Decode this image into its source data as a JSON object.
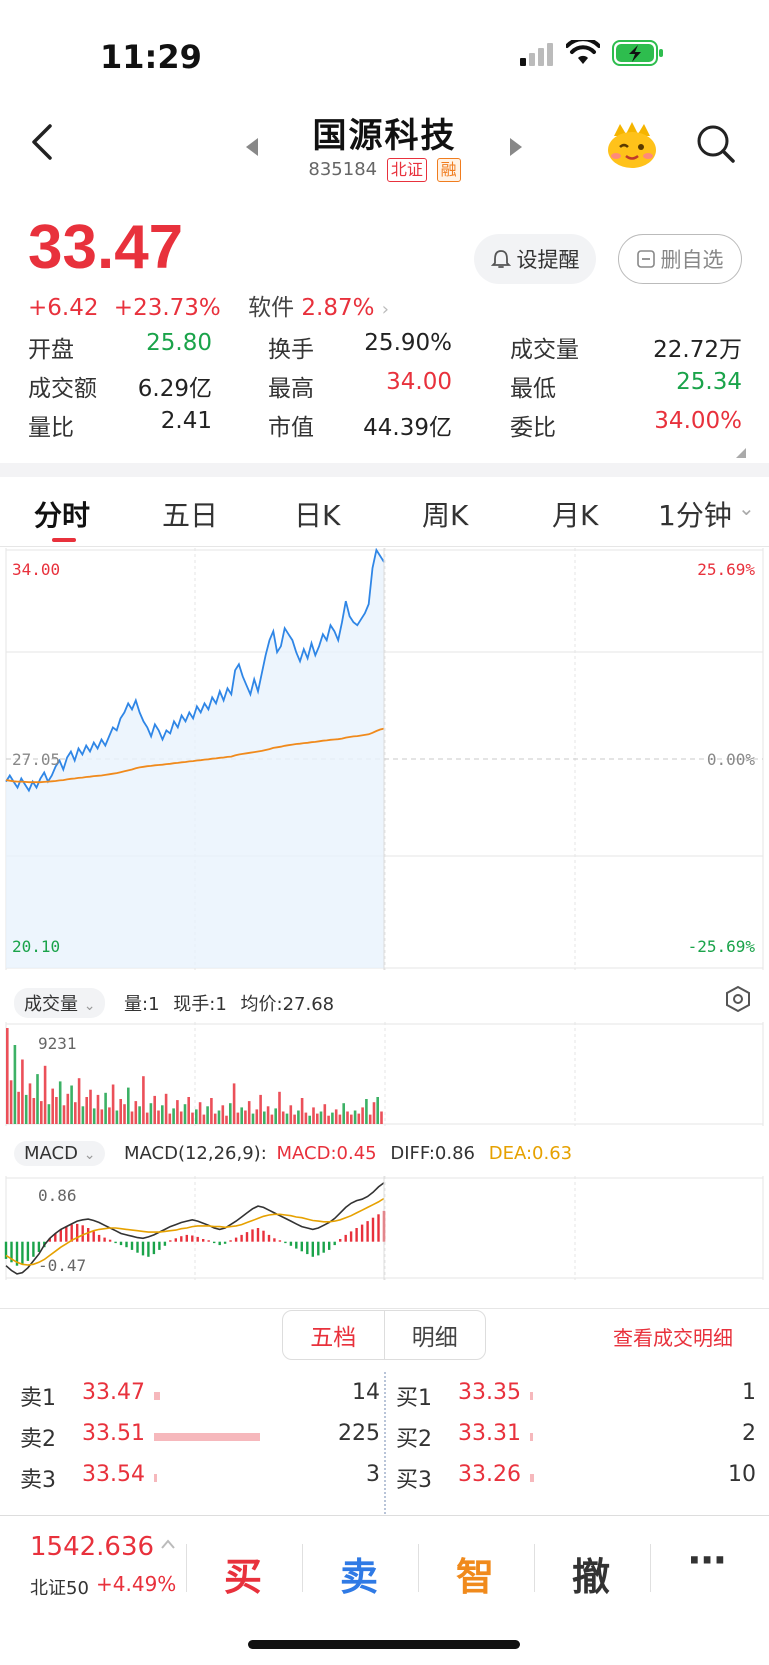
{
  "status_bar": {
    "time": "11:29"
  },
  "header": {
    "title": "国源科技",
    "code": "835184",
    "tag_market": "北证",
    "tag_margin": "融"
  },
  "quote": {
    "price": "33.47",
    "change": "+6.42",
    "change_pct": "+23.73%",
    "sector": "软件",
    "sector_pct": "2.87%",
    "remind_label": "设提醒",
    "watchlist_label": "删自选"
  },
  "stats": [
    [
      {
        "label": "开盘",
        "value": "25.80",
        "color": "green"
      },
      {
        "label": "换手",
        "value": "25.90%",
        "color": "black"
      },
      {
        "label": "成交量",
        "value": "22.72万",
        "color": "black"
      }
    ],
    [
      {
        "label": "成交额",
        "value": "6.29亿",
        "color": "black"
      },
      {
        "label": "最高",
        "value": "34.00",
        "color": "red"
      },
      {
        "label": "最低",
        "value": "25.34",
        "color": "green"
      }
    ],
    [
      {
        "label": "量比",
        "value": "2.41",
        "color": "black"
      },
      {
        "label": "市值",
        "value": "44.39亿",
        "color": "black"
      },
      {
        "label": "委比",
        "value": "34.00%",
        "color": "red"
      }
    ]
  ],
  "tabs": [
    "分时",
    "五日",
    "日K",
    "周K",
    "月K",
    "1分钟"
  ],
  "chart_data": {
    "type": "line",
    "y_axis_left": {
      "max": "34.00",
      "mid": "27.05",
      "min": "20.10"
    },
    "y_axis_right": {
      "max": "25.69%",
      "mid": "0.00%",
      "min": "-25.69%"
    },
    "ylim": [
      20.1,
      34.0
    ],
    "series": [
      {
        "values": [
          26.3,
          26.5,
          26.3,
          26.1,
          26.4,
          26.2,
          26.0,
          26.3,
          26.1,
          26.4,
          26.6,
          26.3,
          26.5,
          26.8,
          27.0,
          26.7,
          27.1,
          27.3,
          27.0,
          27.4,
          27.2,
          27.5,
          27.3,
          27.6,
          27.4,
          27.7,
          27.5,
          27.8,
          28.1,
          28.0,
          28.4,
          28.6,
          28.9,
          28.7,
          29.0,
          28.6,
          28.3,
          28.1,
          27.8,
          28.2,
          28.0,
          27.7,
          28.0,
          27.9,
          28.3,
          28.1,
          28.5,
          28.3,
          28.6,
          28.4,
          28.8,
          28.6,
          28.9,
          28.7,
          29.1,
          28.9,
          29.3,
          29.0,
          29.4,
          29.2,
          30.0,
          30.2,
          29.8,
          29.5,
          29.2,
          29.7,
          29.3,
          29.9,
          30.5,
          31.0,
          31.3,
          30.6,
          30.8,
          31.4,
          31.2,
          31.0,
          30.6,
          30.3,
          30.7,
          30.4,
          30.9,
          30.5,
          30.8,
          31.2,
          31.0,
          31.5,
          31.3,
          31.0,
          31.6,
          32.3,
          31.8,
          31.6,
          31.5,
          31.7,
          31.9,
          32.2,
          33.4,
          34.0,
          33.8,
          33.6
        ]
      },
      {
        "values": [
          26.35,
          26.33,
          26.31,
          26.3,
          26.3,
          26.29,
          26.28,
          26.28,
          26.28,
          26.28,
          26.29,
          26.3,
          26.31,
          26.32,
          26.34,
          26.35,
          26.37,
          26.39,
          26.4,
          26.42,
          26.43,
          26.45,
          26.46,
          26.48,
          26.49,
          26.5,
          26.52,
          26.54,
          26.56,
          26.58,
          26.61,
          26.64,
          26.67,
          26.7,
          26.74,
          26.77,
          26.79,
          26.81,
          26.82,
          26.84,
          26.85,
          26.86,
          26.88,
          26.89,
          26.91,
          26.92,
          26.94,
          26.95,
          26.97,
          26.98,
          27.0,
          27.01,
          27.03,
          27.04,
          27.06,
          27.07,
          27.09,
          27.1,
          27.12,
          27.13,
          27.17,
          27.2,
          27.22,
          27.24,
          27.26,
          27.28,
          27.3,
          27.32,
          27.35,
          27.38,
          27.42,
          27.44,
          27.46,
          27.49,
          27.51,
          27.53,
          27.55,
          27.56,
          27.58,
          27.59,
          27.61,
          27.62,
          27.64,
          27.66,
          27.67,
          27.69,
          27.7,
          27.71,
          27.73,
          27.76,
          27.78,
          27.8,
          27.81,
          27.83,
          27.85,
          27.87,
          27.92,
          27.98,
          28.03,
          28.06
        ]
      }
    ]
  },
  "volume_panel": {
    "selector": "成交量",
    "vol": "量:1",
    "current": "现手:1",
    "avg": "均价:27.68",
    "max_label": "9231",
    "bars": [
      9231,
      4200,
      7600,
      3100,
      6200,
      2800,
      3900,
      2500,
      4800,
      2200,
      5600,
      1900,
      3400,
      2600,
      4100,
      1800,
      2900,
      3700,
      2100,
      4400,
      1700,
      2600,
      3300,
      1500,
      2800,
      1400,
      3000,
      1600,
      3800,
      1300,
      2400,
      1900,
      3500,
      1200,
      2200,
      1700,
      4600,
      1100,
      2000,
      2700,
      1300,
      1800,
      2900,
      1000,
      1500,
      2300,
      1200,
      1900,
      2600,
      1100,
      1400,
      2100,
      900,
      1700,
      2500,
      1000,
      1300,
      1800,
      800,
      2000,
      3900,
      1100,
      1600,
      1300,
      2200,
      1000,
      1400,
      2800,
      1200,
      1700,
      900,
      1500,
      3100,
      1200,
      1000,
      1800,
      900,
      1300,
      2500,
      1100,
      800,
      1600,
      1000,
      1200,
      1900,
      800,
      1100,
      1400,
      900,
      2000,
      1200,
      900,
      1300,
      1000,
      1600,
      2400,
      900,
      2100,
      2600,
      1200
    ]
  },
  "macd_panel": {
    "selector": "MACD",
    "params": "MACD(12,26,9):",
    "macd": "MACD:0.45",
    "diff": "DIFF:0.86",
    "dea": "DEA:0.63",
    "max_label": "0.86",
    "min_label": "-0.47",
    "hist": [
      -0.25,
      -0.3,
      -0.35,
      -0.32,
      -0.28,
      -0.22,
      -0.15,
      -0.08,
      0.05,
      0.12,
      0.18,
      0.22,
      0.25,
      0.26,
      0.24,
      0.2,
      0.15,
      0.1,
      0.06,
      0.03,
      -0.02,
      -0.05,
      -0.08,
      -0.12,
      -0.16,
      -0.2,
      -0.22,
      -0.18,
      -0.12,
      -0.06,
      0.02,
      0.05,
      0.08,
      0.1,
      0.09,
      0.07,
      0.04,
      0.02,
      -0.02,
      -0.05,
      -0.03,
      0.02,
      0.06,
      0.1,
      0.14,
      0.18,
      0.2,
      0.16,
      0.1,
      0.05,
      0.02,
      -0.02,
      -0.06,
      -0.1,
      -0.14,
      -0.18,
      -0.22,
      -0.2,
      -0.16,
      -0.12,
      -0.05,
      0.04,
      0.1,
      0.15,
      0.2,
      0.25,
      0.3,
      0.35,
      0.4,
      0.45
    ],
    "diff_line": [
      -0.35,
      -0.42,
      -0.47,
      -0.45,
      -0.38,
      -0.28,
      -0.18,
      -0.05,
      0.05,
      0.12,
      0.18,
      0.22,
      0.26,
      0.3,
      0.32,
      0.33,
      0.31,
      0.28,
      0.24,
      0.2,
      0.16,
      0.12,
      0.1,
      0.08,
      0.06,
      0.05,
      0.07,
      0.1,
      0.14,
      0.18,
      0.22,
      0.25,
      0.28,
      0.3,
      0.32,
      0.3,
      0.27,
      0.24,
      0.2,
      0.18,
      0.2,
      0.25,
      0.3,
      0.36,
      0.42,
      0.48,
      0.52,
      0.5,
      0.46,
      0.42,
      0.38,
      0.34,
      0.3,
      0.26,
      0.22,
      0.2,
      0.18,
      0.2,
      0.24,
      0.28,
      0.34,
      0.42,
      0.5,
      0.56,
      0.6,
      0.62,
      0.66,
      0.72,
      0.8,
      0.86
    ],
    "dea_line": [
      -0.2,
      -0.25,
      -0.3,
      -0.33,
      -0.34,
      -0.33,
      -0.3,
      -0.26,
      -0.2,
      -0.14,
      -0.08,
      -0.03,
      0.02,
      0.06,
      0.1,
      0.13,
      0.16,
      0.18,
      0.19,
      0.2,
      0.2,
      0.19,
      0.18,
      0.17,
      0.16,
      0.15,
      0.14,
      0.14,
      0.14,
      0.15,
      0.16,
      0.17,
      0.19,
      0.2,
      0.22,
      0.23,
      0.23,
      0.23,
      0.22,
      0.22,
      0.21,
      0.22,
      0.23,
      0.25,
      0.28,
      0.31,
      0.34,
      0.37,
      0.39,
      0.4,
      0.4,
      0.39,
      0.38,
      0.36,
      0.35,
      0.33,
      0.31,
      0.3,
      0.29,
      0.29,
      0.3,
      0.32,
      0.35,
      0.38,
      0.42,
      0.46,
      0.5,
      0.54,
      0.58,
      0.63
    ]
  },
  "order_book": {
    "tab_five": "五档",
    "tab_detail": "明细",
    "view_detail": "查看成交明细",
    "sells": [
      {
        "label": "卖1",
        "price": "33.47",
        "qty": "14",
        "ratio": 0.06
      },
      {
        "label": "卖2",
        "price": "33.51",
        "qty": "225",
        "ratio": 1.0
      },
      {
        "label": "卖3",
        "price": "33.54",
        "qty": "3",
        "ratio": 0.015
      }
    ],
    "buys": [
      {
        "label": "买1",
        "price": "33.35",
        "qty": "1",
        "ratio": 0.01
      },
      {
        "label": "买2",
        "price": "33.31",
        "qty": "2",
        "ratio": 0.01
      },
      {
        "label": "买3",
        "price": "33.26",
        "qty": "10",
        "ratio": 0.04
      }
    ]
  },
  "bottom_bar": {
    "index_value": "1542.636",
    "index_name": "北证50",
    "index_pct": "+4.49%",
    "buy": "买",
    "sell": "卖",
    "smart": "智",
    "cancel": "撤",
    "more": "⋯"
  },
  "colors": {
    "up": "#e8313c",
    "down": "#1aa34a",
    "price_line": "#2f86e6",
    "avg_line": "#f08a1c",
    "sell_blue": "#2f7ae5",
    "smart_orange": "#f08a1c"
  }
}
